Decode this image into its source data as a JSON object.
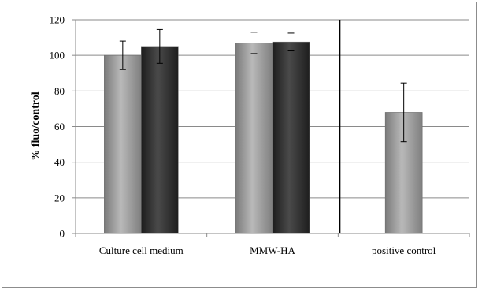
{
  "chart_data": {
    "type": "bar",
    "title": "",
    "xlabel": "",
    "ylabel": "% fluo/control",
    "ylim": [
      0,
      120
    ],
    "yticks": [
      0,
      20,
      40,
      60,
      80,
      100,
      120
    ],
    "grid": true,
    "legend": "none",
    "categories": [
      "Culture cell medium",
      "MMW-HA",
      "positive control"
    ],
    "series": [
      {
        "color": "#8f8f8f",
        "values": [
          100,
          107,
          68
        ],
        "errors": [
          8,
          6,
          16.5
        ]
      },
      {
        "color": "#2f2f2f",
        "values": [
          105,
          107.5,
          null
        ],
        "errors": [
          9.5,
          5,
          null
        ]
      }
    ],
    "separator_between": [
      "MMW-HA",
      "positive control"
    ]
  }
}
